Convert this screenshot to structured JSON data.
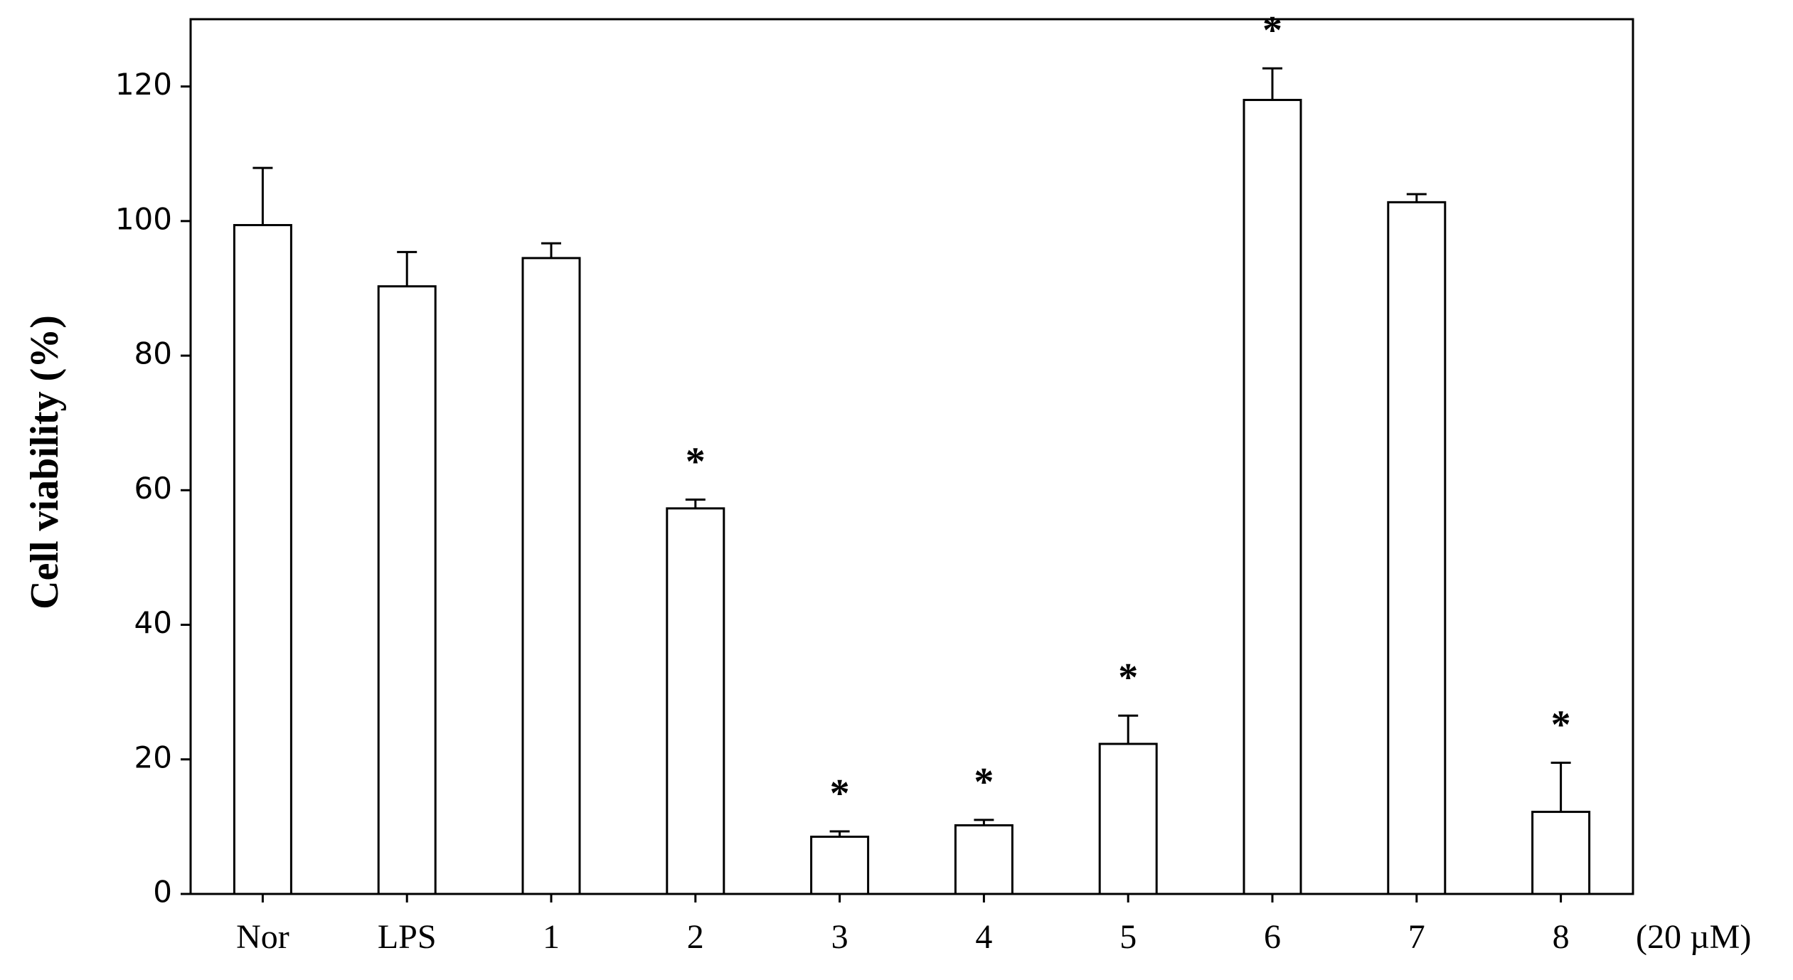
{
  "chart_data": {
    "type": "bar",
    "y_label": "Cell viability (%)",
    "x_label": "(20 µM)",
    "categories": [
      "Nor",
      "LPS",
      "1",
      "2",
      "3",
      "4",
      "5",
      "6",
      "7",
      "8"
    ],
    "values": [
      99.4,
      90.3,
      94.5,
      57.3,
      8.5,
      10.2,
      22.3,
      118.0,
      102.8,
      12.2
    ],
    "errors": [
      8.5,
      5.1,
      2.2,
      1.3,
      0.8,
      0.8,
      4.2,
      4.7,
      1.2,
      7.3
    ],
    "markers": [
      null,
      null,
      null,
      "*",
      "*",
      "*",
      "*",
      "*",
      null,
      "*"
    ],
    "color": "#ffffff",
    "ylim": [
      0,
      130
    ],
    "yticks": [
      0,
      20,
      40,
      60,
      80,
      100,
      120
    ],
    "grid": false
  }
}
